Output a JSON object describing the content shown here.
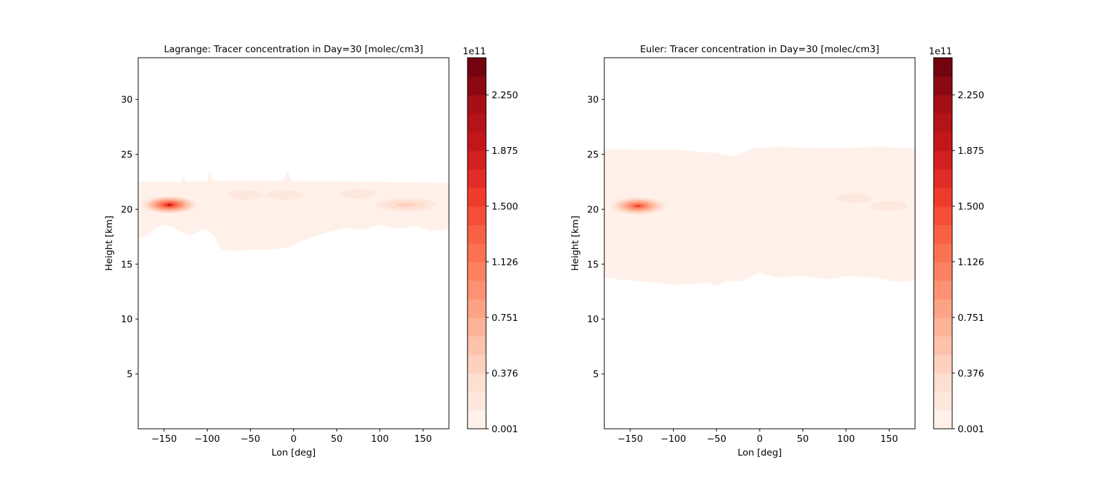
{
  "chart_data": [
    {
      "type": "heatmap",
      "title": "Lagrange: Tracer concentration in Day=30 [molec/cm3]",
      "xlabel": "Lon [deg]",
      "ylabel": "Height [km]",
      "xlim": [
        -180,
        180
      ],
      "ylim": [
        0,
        33.8
      ],
      "xticks": [
        "−150",
        "−100",
        "−50",
        "0",
        "50",
        "100",
        "150"
      ],
      "xtick_values": [
        -150,
        -100,
        -50,
        0,
        50,
        100,
        150
      ],
      "yticks": [
        "5",
        "10",
        "15",
        "20",
        "25",
        "30"
      ],
      "ytick_values": [
        5,
        10,
        15,
        20,
        25,
        30
      ],
      "band_bottom": [
        [
          -180,
          17.3
        ],
        [
          -170,
          17.6
        ],
        [
          -160,
          18.2
        ],
        [
          -150,
          18.6
        ],
        [
          -140,
          18.4
        ],
        [
          -130,
          17.9
        ],
        [
          -120,
          17.6
        ],
        [
          -110,
          18.0
        ],
        [
          -100,
          18.2
        ],
        [
          -90,
          17.4
        ],
        [
          -85,
          16.4
        ],
        [
          -75,
          16.2
        ],
        [
          -50,
          16.3
        ],
        [
          -25,
          16.3
        ],
        [
          -5,
          16.5
        ],
        [
          5,
          17.0
        ],
        [
          20,
          17.4
        ],
        [
          40,
          17.9
        ],
        [
          60,
          18.3
        ],
        [
          80,
          18.1
        ],
        [
          100,
          18.6
        ],
        [
          120,
          18.2
        ],
        [
          140,
          18.5
        ],
        [
          160,
          18.0
        ],
        [
          180,
          18.2
        ]
      ],
      "band_top": [
        [
          -180,
          22.5
        ],
        [
          -130,
          22.5
        ],
        [
          -128,
          23.1
        ],
        [
          -125,
          22.5
        ],
        [
          -100,
          22.6
        ],
        [
          -98,
          23.3
        ],
        [
          -92,
          22.6
        ],
        [
          -12,
          22.6
        ],
        [
          -7,
          23.6
        ],
        [
          -3,
          22.6
        ],
        [
          180,
          22.4
        ]
      ],
      "hotspots": [
        {
          "lon": -144,
          "height": 20.4,
          "peak": 2.1
        },
        {
          "lon": 130,
          "height": 20.4,
          "peak": 0.5
        },
        {
          "lon": 75,
          "height": 21.4,
          "peak": 0.22
        },
        {
          "lon": -10,
          "height": 21.3,
          "peak": 0.18
        },
        {
          "lon": -55,
          "height": 21.3,
          "peak": 0.15
        }
      ],
      "background_level": 0.05,
      "colorbar": {
        "multiplier_label": "1e11",
        "tick_labels": [
          "0.001",
          "0.376",
          "0.751",
          "1.126",
          "1.500",
          "1.875",
          "2.250"
        ],
        "tick_values": [
          0.001,
          0.376,
          0.751,
          1.126,
          1.5,
          1.875,
          2.25
        ],
        "min": 0.001,
        "max": 2.5,
        "levels": 20,
        "colormap": "Reds"
      }
    },
    {
      "type": "heatmap",
      "title": "Euler: Tracer concentration in Day=30 [molec/cm3]",
      "xlabel": "Lon [deg]",
      "ylabel": "Height [km]",
      "xlim": [
        -180,
        180
      ],
      "ylim": [
        0,
        33.8
      ],
      "xticks": [
        "−150",
        "−100",
        "−50",
        "0",
        "50",
        "100",
        "150"
      ],
      "xtick_values": [
        -150,
        -100,
        -50,
        0,
        50,
        100,
        150
      ],
      "yticks": [
        "5",
        "10",
        "15",
        "20",
        "25",
        "30"
      ],
      "ytick_values": [
        5,
        10,
        15,
        20,
        25,
        30
      ],
      "band_bottom": [
        [
          -180,
          13.8
        ],
        [
          -165,
          13.6
        ],
        [
          -150,
          13.5
        ],
        [
          -120,
          13.3
        ],
        [
          -100,
          13.1
        ],
        [
          -80,
          13.2
        ],
        [
          -60,
          13.3
        ],
        [
          -50,
          13.0
        ],
        [
          -40,
          13.4
        ],
        [
          -20,
          13.5
        ],
        [
          0,
          14.2
        ],
        [
          20,
          13.8
        ],
        [
          50,
          13.9
        ],
        [
          80,
          13.6
        ],
        [
          100,
          13.9
        ],
        [
          130,
          13.8
        ],
        [
          160,
          13.4
        ],
        [
          180,
          13.5
        ]
      ],
      "band_top": [
        [
          -180,
          25.5
        ],
        [
          -130,
          25.4
        ],
        [
          -90,
          25.4
        ],
        [
          -50,
          25.1
        ],
        [
          -30,
          24.8
        ],
        [
          -10,
          25.5
        ],
        [
          20,
          25.7
        ],
        [
          60,
          25.6
        ],
        [
          100,
          25.6
        ],
        [
          140,
          25.7
        ],
        [
          180,
          25.5
        ]
      ],
      "hotspots": [
        {
          "lon": -141,
          "height": 20.3,
          "peak": 1.7
        },
        {
          "lon": 150,
          "height": 20.3,
          "peak": 0.16
        },
        {
          "lon": 110,
          "height": 21.0,
          "peak": 0.1
        }
      ],
      "background_level": 0.05,
      "colorbar": {
        "multiplier_label": "1e11",
        "tick_labels": [
          "0.001",
          "0.376",
          "0.751",
          "1.126",
          "1.500",
          "1.875",
          "2.250"
        ],
        "tick_values": [
          0.001,
          0.376,
          0.751,
          1.126,
          1.5,
          1.875,
          2.25
        ],
        "min": 0.001,
        "max": 2.5,
        "levels": 20,
        "colormap": "Reds"
      }
    }
  ]
}
